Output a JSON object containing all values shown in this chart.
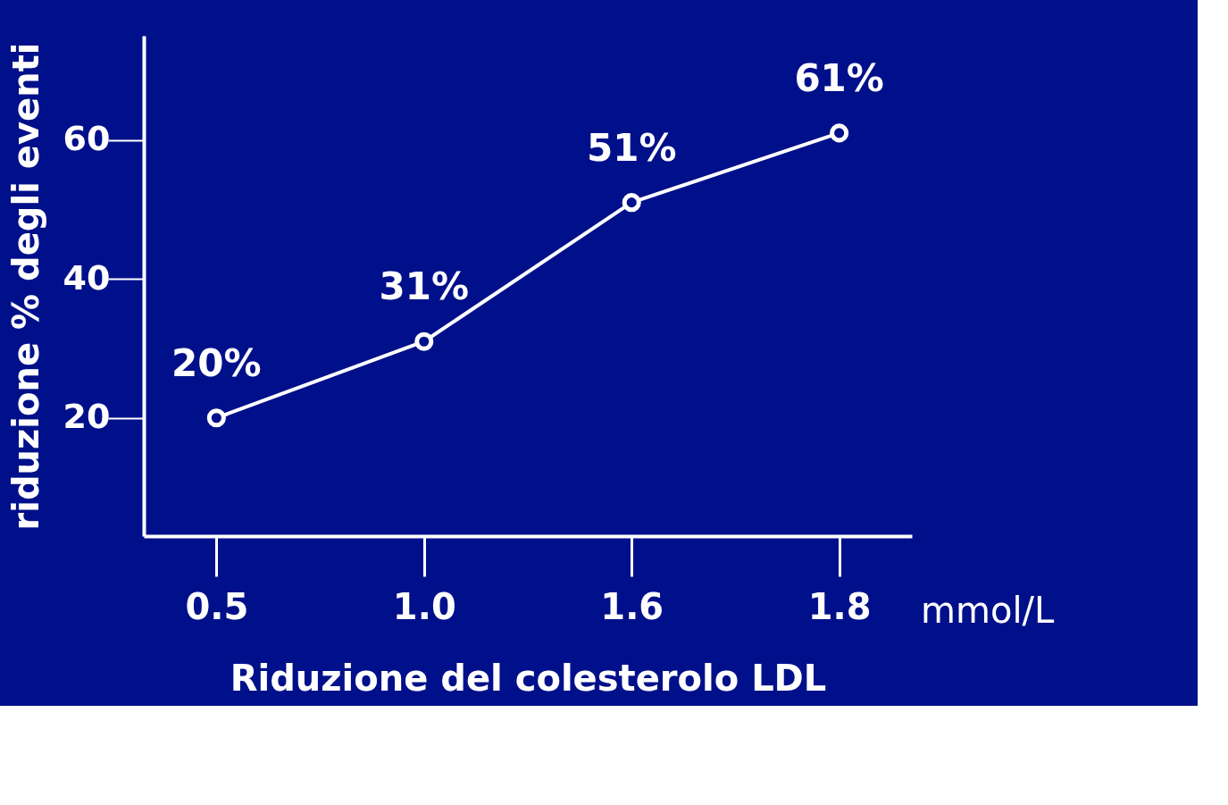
{
  "chart_data": {
    "type": "line",
    "xlabel": "Riduzione del colesterolo LDL",
    "ylabel": "riduzione % degli eventi",
    "categories": [
      "0.5",
      "1.0",
      "1.6",
      "1.8"
    ],
    "series": [
      {
        "color": "#ffffff",
        "values": [
          20,
          31,
          51,
          61
        ]
      }
    ],
    "value_labels": [
      "20%",
      "31%",
      "51%",
      "61%"
    ],
    "ylim": [
      3,
      75
    ],
    "yticks": [
      20,
      40,
      60
    ],
    "marker": "circle",
    "line_style": "solid",
    "grid": false,
    "annotations": [
      "mmol/L"
    ]
  }
}
